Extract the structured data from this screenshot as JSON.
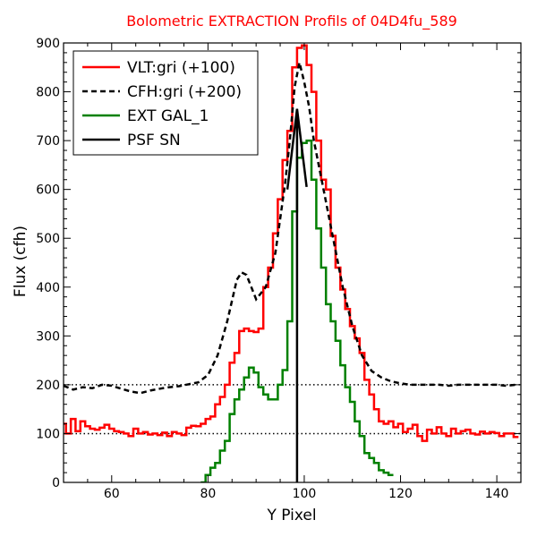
{
  "chart_data": {
    "type": "line",
    "title": "Bolometric EXTRACTION Profils of 04D4fu_589",
    "xlabel": "Y Pixel",
    "ylabel": "Flux (cfh)",
    "xlim": [
      50,
      145
    ],
    "ylim": [
      0,
      900
    ],
    "xticks": [
      60,
      80,
      100,
      120,
      140
    ],
    "yticks": [
      0,
      100,
      200,
      300,
      400,
      500,
      600,
      700,
      800,
      900
    ],
    "grid": false,
    "legend_position": "upper-left",
    "colors": {
      "vlt": "#ff0000",
      "cfh": "#000000",
      "gal": "#008000",
      "psf": "#000000",
      "title": "#ff0000"
    },
    "reference_lines": [
      {
        "y": 100,
        "style": "dotted"
      },
      {
        "y": 200,
        "style": "dotted"
      }
    ],
    "series": [
      {
        "name": "VLT:gri (+100)",
        "style": "steps",
        "color": "#ff0000",
        "x": [
          50,
          51,
          52,
          53,
          54,
          55,
          56,
          57,
          58,
          59,
          60,
          61,
          62,
          63,
          64,
          65,
          66,
          67,
          68,
          69,
          70,
          71,
          72,
          73,
          74,
          75,
          76,
          77,
          78,
          79,
          80,
          81,
          82,
          83,
          84,
          85,
          86,
          87,
          88,
          89,
          90,
          91,
          92,
          93,
          94,
          95,
          96,
          97,
          98,
          99,
          100,
          101,
          102,
          103,
          104,
          105,
          106,
          107,
          108,
          109,
          110,
          111,
          112,
          113,
          114,
          115,
          116,
          117,
          118,
          119,
          120,
          121,
          122,
          123,
          124,
          125,
          126,
          127,
          128,
          129,
          130,
          131,
          132,
          133,
          134,
          135,
          136,
          137,
          138,
          139,
          140,
          141,
          142,
          143,
          144
        ],
        "y": [
          120,
          100,
          130,
          105,
          125,
          115,
          110,
          108,
          112,
          118,
          110,
          105,
          103,
          100,
          95,
          110,
          100,
          103,
          98,
          100,
          97,
          102,
          95,
          103,
          100,
          97,
          112,
          116,
          115,
          120,
          130,
          135,
          160,
          175,
          200,
          245,
          265,
          310,
          315,
          310,
          308,
          315,
          400,
          440,
          510,
          580,
          660,
          720,
          850,
          890,
          895,
          855,
          800,
          700,
          620,
          600,
          505,
          440,
          395,
          355,
          320,
          295,
          265,
          210,
          180,
          150,
          125,
          120,
          125,
          113,
          120,
          103,
          110,
          118,
          95,
          85,
          108,
          100,
          113,
          100,
          95,
          110,
          100,
          105,
          108,
          100,
          98,
          104,
          100,
          103,
          101,
          95,
          100,
          100,
          93
        ]
      },
      {
        "name": "CFH:gri (+200)",
        "style": "dashed",
        "color": "#000000",
        "x": [
          50,
          52,
          54,
          56,
          58,
          60,
          62,
          64,
          66,
          68,
          70,
          72,
          74,
          76,
          78,
          80,
          82,
          84,
          86,
          87,
          88,
          90,
          92,
          94,
          96,
          97,
          98,
          99,
          100,
          101,
          102,
          104,
          106,
          108,
          110,
          112,
          114,
          116,
          118,
          120,
          122,
          124,
          126,
          128,
          130,
          132,
          134,
          136,
          138,
          140,
          142,
          144
        ],
        "y": [
          198,
          190,
          195,
          193,
          200,
          198,
          192,
          186,
          183,
          188,
          192,
          195,
          197,
          201,
          205,
          220,
          260,
          330,
          415,
          430,
          425,
          375,
          400,
          470,
          610,
          700,
          810,
          860,
          820,
          770,
          700,
          600,
          500,
          400,
          320,
          260,
          228,
          215,
          207,
          203,
          200,
          200,
          200,
          200,
          198,
          200,
          200,
          200,
          200,
          200,
          198,
          200
        ]
      },
      {
        "name": "EXT GAL_1",
        "style": "steps",
        "color": "#008000",
        "x": [
          79,
          80,
          81,
          82,
          83,
          84,
          85,
          86,
          87,
          88,
          89,
          90,
          91,
          92,
          93,
          94,
          95,
          96,
          97,
          98,
          99,
          100,
          101,
          102,
          103,
          104,
          105,
          106,
          107,
          108,
          109,
          110,
          111,
          112,
          113,
          114,
          115,
          116,
          117,
          118
        ],
        "y": [
          0,
          15,
          30,
          40,
          65,
          85,
          140,
          170,
          190,
          215,
          235,
          225,
          195,
          180,
          170,
          170,
          200,
          230,
          330,
          555,
          665,
          695,
          700,
          620,
          520,
          440,
          365,
          330,
          290,
          240,
          195,
          165,
          125,
          95,
          60,
          50,
          40,
          25,
          20,
          15
        ]
      },
      {
        "name": "PSF SN",
        "style": "line",
        "color": "#000000",
        "x": [
          98.5,
          98.5,
          96.5,
          98.5,
          100.5
        ],
        "y": [
          0,
          765,
          600,
          765,
          605
        ]
      }
    ]
  }
}
